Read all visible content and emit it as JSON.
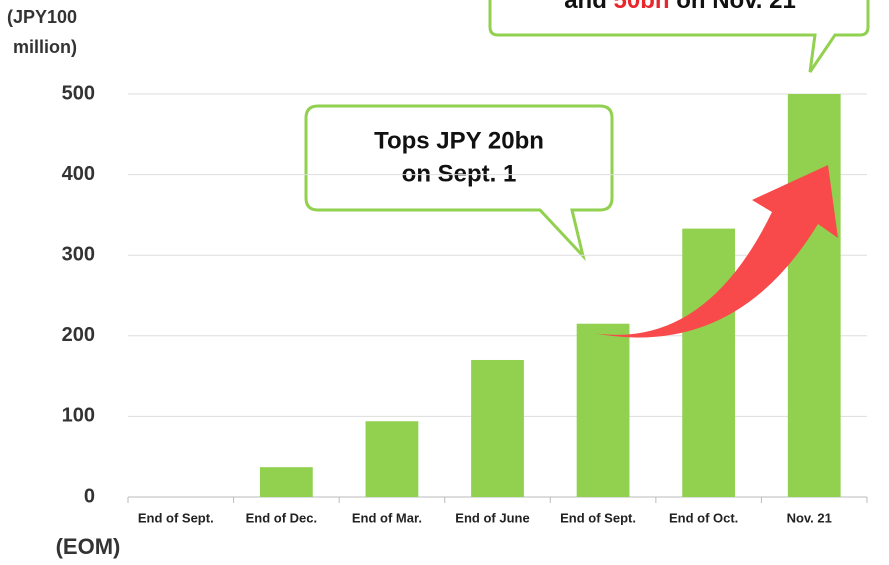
{
  "chart_data": {
    "type": "bar",
    "y_axis_label": [
      "(JPY100",
      "million)"
    ],
    "x_axis_label": "(EOM)",
    "categories": [
      "End of Sept.",
      "End of Dec.",
      "End of Mar.",
      "End of June",
      "End of Sept.",
      "End of Oct.",
      "Nov. 21"
    ],
    "values": [
      0,
      37,
      94,
      170,
      215,
      333,
      500
    ],
    "color": "#92d050",
    "ylim": [
      0,
      500
    ],
    "yticks": [
      0,
      100,
      200,
      300,
      400,
      500
    ],
    "grid": true,
    "annotations": [
      "Tops JPY 20bn",
      "on Sept. 1"
    ],
    "annotation_top": [
      "and ",
      "50bn",
      " on Nov. 21"
    ]
  }
}
